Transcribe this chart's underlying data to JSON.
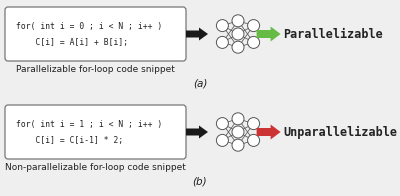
{
  "bg_color": "#efefef",
  "panel_bg": "#ffffff",
  "box_a_lines": [
    "for( int i = 0 ; i < N ; i++ )",
    "    C[i] = A[i] + B[i];"
  ],
  "box_b_lines": [
    "for( int i = 1 ; i < N ; i++ )",
    "    C[i] = C[i-1] * 2;"
  ],
  "caption_a": "Parallelizable for-loop code snippet",
  "caption_b": "Non-parallelizable for-loop code snippet",
  "label_a": "(a)",
  "label_b": "(b)",
  "result_a": "Parallelizable",
  "result_b": "Unparallelizable",
  "arrow_color_a": "#66bb44",
  "arrow_color_b": "#cc3333",
  "black_arrow_color": "#1a1a1a",
  "node_color": "#ffffff",
  "node_edge_color": "#555555",
  "line_color": "#555555",
  "text_color": "#222222",
  "code_font_size": 5.8,
  "caption_font_size": 6.5,
  "result_font_size": 8.5,
  "label_font_size": 7.5
}
